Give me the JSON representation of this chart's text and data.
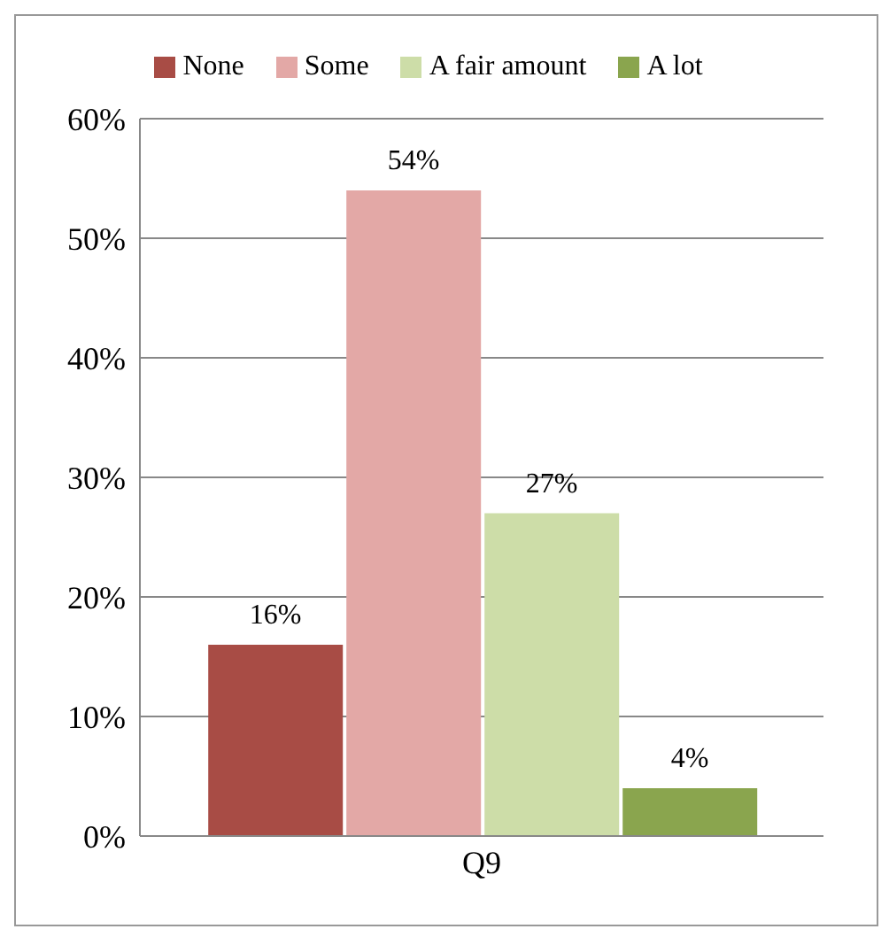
{
  "chart_data": {
    "type": "bar",
    "categories": [
      "Q9"
    ],
    "series": [
      {
        "name": "None",
        "color": "#a84c45",
        "values": [
          16
        ],
        "value_labels": [
          "16%"
        ]
      },
      {
        "name": "Some",
        "color": "#e3a8a6",
        "values": [
          54
        ],
        "value_labels": [
          "54%"
        ]
      },
      {
        "name": "A fair amount",
        "color": "#cddda8",
        "values": [
          27
        ],
        "value_labels": [
          "27%"
        ]
      },
      {
        "name": "A lot",
        "color": "#8aa54e",
        "values": [
          4
        ],
        "value_labels": [
          "4%"
        ]
      }
    ],
    "ylim": [
      0,
      60
    ],
    "yticks": [
      {
        "value": 0,
        "label": "0%"
      },
      {
        "value": 10,
        "label": "10%"
      },
      {
        "value": 20,
        "label": "20%"
      },
      {
        "value": 30,
        "label": "30%"
      },
      {
        "value": 40,
        "label": "40%"
      },
      {
        "value": 50,
        "label": "50%"
      },
      {
        "value": 60,
        "label": "60%"
      }
    ],
    "grid": "y",
    "legend": "top"
  }
}
